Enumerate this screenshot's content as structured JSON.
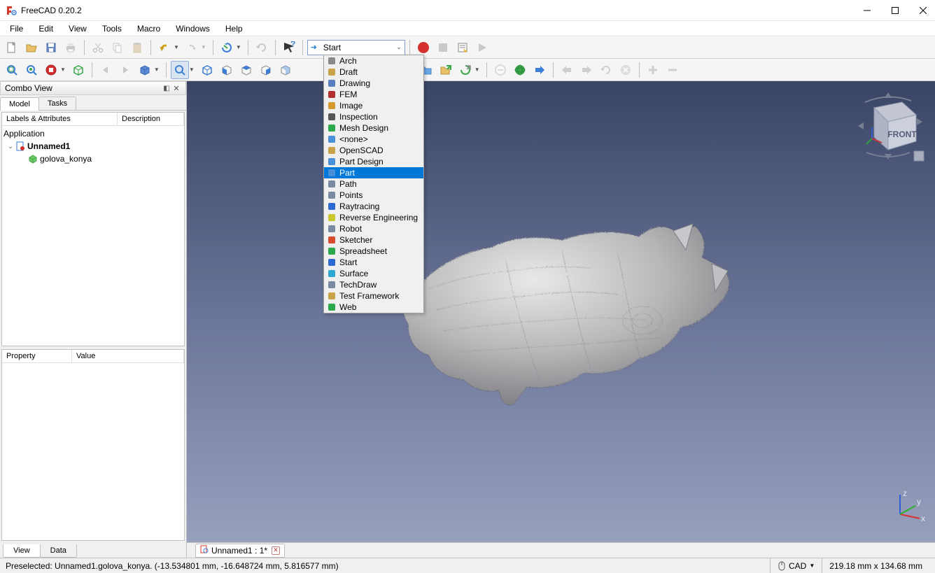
{
  "title": "FreeCAD 0.20.2",
  "menu": [
    "File",
    "Edit",
    "View",
    "Tools",
    "Macro",
    "Windows",
    "Help"
  ],
  "workbench": {
    "current": "Start",
    "items": [
      "Arch",
      "Draft",
      "Drawing",
      "FEM",
      "Image",
      "Inspection",
      "Mesh Design",
      "<none>",
      "OpenSCAD",
      "Part Design",
      "Part",
      "Path",
      "Points",
      "Raytracing",
      "Reverse Engineering",
      "Robot",
      "Sketcher",
      "Spreadsheet",
      "Start",
      "Surface",
      "TechDraw",
      "Test Framework",
      "Web"
    ],
    "highlighted": "Part",
    "icon_colors": [
      "#8a8a8a",
      "#c9a24a",
      "#5a7fbf",
      "#b23030",
      "#d49a2e",
      "#555555",
      "#2aa84a",
      "#4a90d9",
      "#c9a24a",
      "#4a90d9",
      "#4a90d9",
      "#7a8aa0",
      "#7a8aa0",
      "#2e6ad1",
      "#c9c92e",
      "#7a8aa0",
      "#d94a2e",
      "#2aa84a",
      "#2e6ad1",
      "#2ea8d1",
      "#7a8aa0",
      "#c9a24a",
      "#2aa84a"
    ]
  },
  "combo_view": {
    "title": "Combo View",
    "tabs": [
      "Model",
      "Tasks"
    ],
    "active_tab": "Model",
    "headers": [
      "Labels & Attributes",
      "Description"
    ],
    "tree": {
      "root": "Application",
      "doc": "Unnamed1",
      "item": "golova_konya"
    },
    "prop_headers": [
      "Property",
      "Value"
    ],
    "bottom_tabs": [
      "View",
      "Data"
    ],
    "active_bottom": "View"
  },
  "doc_tab": "Unnamed1 : 1*",
  "status": {
    "message": "Preselected: Unnamed1.golova_konya. (-13.534801 mm, -16.648724 mm, 5.816577 mm)",
    "nav_mode": "CAD",
    "dimensions": "219.18 mm x 134.68 mm"
  },
  "navcube": {
    "face": "FRONT"
  },
  "colors": {
    "viewport_top": "#3a4566",
    "viewport_mid": "#6b7599",
    "viewport_bot": "#9aa3bf",
    "highlight": "#0078d7",
    "axis_x": "#d93030",
    "axis_y": "#30b030",
    "axis_z": "#3060d9"
  }
}
